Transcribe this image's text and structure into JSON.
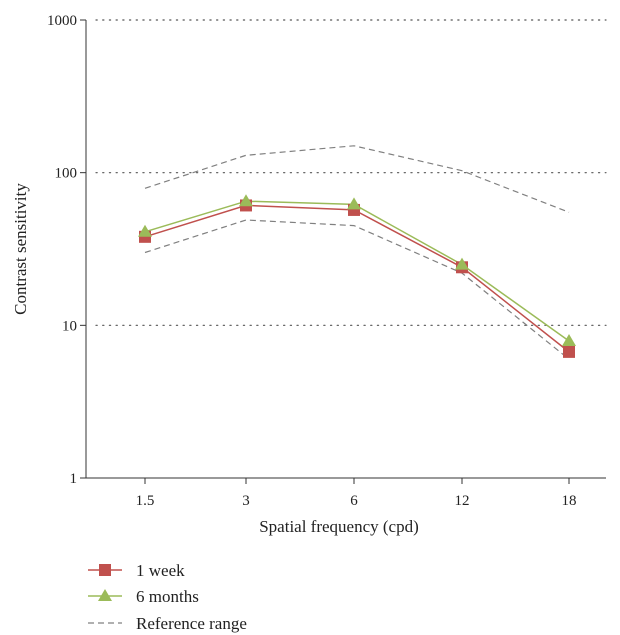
{
  "chart_data": {
    "type": "line",
    "categories": [
      "1.5",
      "3",
      "6",
      "12",
      "18"
    ],
    "xlabel": "Spatial frequency (cpd)",
    "ylabel": "Contrast sensitivity",
    "yscale": "log",
    "ylim": [
      1,
      1000
    ],
    "yticks": [
      1,
      10,
      100,
      1000
    ],
    "ytick_labels": [
      "1",
      "10",
      "100",
      "1000"
    ],
    "grid": "horizontal-dotted",
    "legend_position": "bottom-left",
    "series": [
      {
        "name": "1 week",
        "marker": "square",
        "color": "#c0504d",
        "values": [
          38,
          61,
          57,
          24,
          6.7
        ]
      },
      {
        "name": "6 months",
        "marker": "triangle",
        "color": "#9bbb59",
        "values": [
          41,
          65,
          62,
          25,
          7.9
        ]
      }
    ],
    "reference": {
      "name": "Reference range",
      "color": "#808080",
      "upper": [
        79,
        130,
        150,
        103,
        55
      ],
      "lower": [
        30,
        49,
        45,
        22,
        6
      ]
    }
  }
}
